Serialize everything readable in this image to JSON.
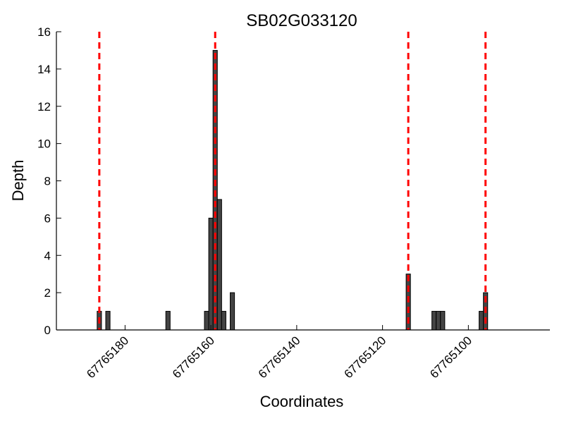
{
  "chart_data": {
    "type": "bar",
    "title": "SB02G033120",
    "xlabel": "Coordinates",
    "ylabel": "Depth",
    "x_axis_reversed": true,
    "xlim": [
      67765196,
      67765081
    ],
    "ylim": [
      0,
      16
    ],
    "grid": false,
    "bar_color": "#444444",
    "bar_edge_color": "#000000",
    "marker_line_color": "#ff0000",
    "x_ticks": [
      {
        "value": 67765180,
        "label": "67765180"
      },
      {
        "value": 67765160,
        "label": "67765160"
      },
      {
        "value": 67765140,
        "label": "67765140"
      },
      {
        "value": 67765120,
        "label": "67765120"
      },
      {
        "value": 67765100,
        "label": "67765100"
      }
    ],
    "y_ticks": [
      {
        "value": 0,
        "label": "0"
      },
      {
        "value": 2,
        "label": "2"
      },
      {
        "value": 4,
        "label": "4"
      },
      {
        "value": 6,
        "label": "6"
      },
      {
        "value": 8,
        "label": "8"
      },
      {
        "value": 10,
        "label": "10"
      },
      {
        "value": 12,
        "label": "12"
      },
      {
        "value": 14,
        "label": "14"
      },
      {
        "value": 16,
        "label": "16"
      }
    ],
    "bars": [
      {
        "x": 67765186,
        "y": 1
      },
      {
        "x": 67765184,
        "y": 1
      },
      {
        "x": 67765170,
        "y": 1
      },
      {
        "x": 67765161,
        "y": 1
      },
      {
        "x": 67765160,
        "y": 6
      },
      {
        "x": 67765159,
        "y": 15
      },
      {
        "x": 67765158,
        "y": 7
      },
      {
        "x": 67765157,
        "y": 1
      },
      {
        "x": 67765155,
        "y": 2
      },
      {
        "x": 67765114,
        "y": 3
      },
      {
        "x": 67765108,
        "y": 1
      },
      {
        "x": 67765107,
        "y": 1
      },
      {
        "x": 67765106,
        "y": 1
      },
      {
        "x": 67765097,
        "y": 1
      },
      {
        "x": 67765096,
        "y": 2
      }
    ],
    "vertical_lines": [
      67765186,
      67765159,
      67765114,
      67765096
    ]
  }
}
